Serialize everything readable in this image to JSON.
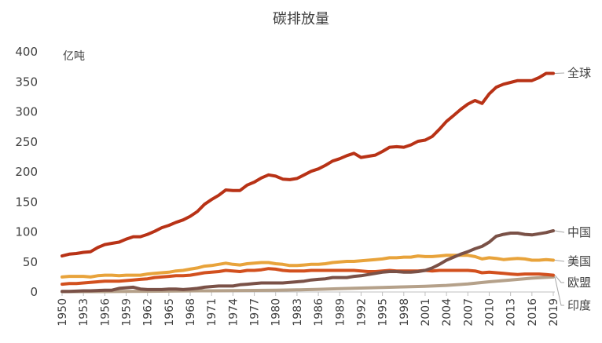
{
  "chart_data": {
    "type": "line",
    "title": "碳排放量",
    "unit_label": "亿吨",
    "ylim": [
      0,
      400
    ],
    "yticks": [
      0,
      50,
      100,
      150,
      200,
      250,
      300,
      350,
      400
    ],
    "xlim": [
      1950,
      2019
    ],
    "xticks": [
      1950,
      1953,
      1956,
      1959,
      1962,
      1965,
      1968,
      1971,
      1974,
      1977,
      1980,
      1983,
      1986,
      1989,
      1992,
      1995,
      1998,
      2001,
      2004,
      2007,
      2010,
      2013,
      2016,
      2019
    ],
    "grid": false,
    "series": [
      {
        "name": "全球",
        "color": "#b83216",
        "points": [
          [
            1950,
            60
          ],
          [
            1951,
            63
          ],
          [
            1952,
            64
          ],
          [
            1953,
            66
          ],
          [
            1954,
            67
          ],
          [
            1955,
            74
          ],
          [
            1956,
            79
          ],
          [
            1957,
            81
          ],
          [
            1958,
            83
          ],
          [
            1959,
            88
          ],
          [
            1960,
            92
          ],
          [
            1961,
            92
          ],
          [
            1962,
            96
          ],
          [
            1963,
            101
          ],
          [
            1964,
            107
          ],
          [
            1965,
            111
          ],
          [
            1966,
            116
          ],
          [
            1967,
            120
          ],
          [
            1968,
            126
          ],
          [
            1969,
            134
          ],
          [
            1970,
            146
          ],
          [
            1971,
            154
          ],
          [
            1972,
            161
          ],
          [
            1973,
            170
          ],
          [
            1974,
            169
          ],
          [
            1975,
            169
          ],
          [
            1976,
            178
          ],
          [
            1977,
            183
          ],
          [
            1978,
            190
          ],
          [
            1979,
            195
          ],
          [
            1980,
            193
          ],
          [
            1981,
            188
          ],
          [
            1982,
            187
          ],
          [
            1983,
            189
          ],
          [
            1984,
            195
          ],
          [
            1985,
            201
          ],
          [
            1986,
            205
          ],
          [
            1987,
            211
          ],
          [
            1988,
            218
          ],
          [
            1989,
            222
          ],
          [
            1990,
            227
          ],
          [
            1991,
            231
          ],
          [
            1992,
            224
          ],
          [
            1993,
            226
          ],
          [
            1994,
            228
          ],
          [
            1995,
            234
          ],
          [
            1996,
            241
          ],
          [
            1997,
            242
          ],
          [
            1998,
            241
          ],
          [
            1999,
            245
          ],
          [
            2000,
            251
          ],
          [
            2001,
            253
          ],
          [
            2002,
            259
          ],
          [
            2003,
            271
          ],
          [
            2004,
            284
          ],
          [
            2005,
            294
          ],
          [
            2006,
            304
          ],
          [
            2007,
            313
          ],
          [
            2008,
            319
          ],
          [
            2009,
            314
          ],
          [
            2010,
            330
          ],
          [
            2011,
            341
          ],
          [
            2012,
            346
          ],
          [
            2013,
            349
          ],
          [
            2014,
            352
          ],
          [
            2015,
            352
          ],
          [
            2016,
            352
          ],
          [
            2017,
            357
          ],
          [
            2018,
            364
          ],
          [
            2019,
            364
          ]
        ]
      },
      {
        "name": "中国",
        "color": "#7a5147",
        "points": [
          [
            1950,
            1
          ],
          [
            1951,
            1
          ],
          [
            1952,
            1.5
          ],
          [
            1953,
            2
          ],
          [
            1954,
            2
          ],
          [
            1955,
            2.5
          ],
          [
            1956,
            3
          ],
          [
            1957,
            3
          ],
          [
            1958,
            6
          ],
          [
            1959,
            7
          ],
          [
            1960,
            8
          ],
          [
            1961,
            5
          ],
          [
            1962,
            4
          ],
          [
            1963,
            4
          ],
          [
            1964,
            4
          ],
          [
            1965,
            5
          ],
          [
            1966,
            5
          ],
          [
            1967,
            4
          ],
          [
            1968,
            5
          ],
          [
            1969,
            6
          ],
          [
            1970,
            8
          ],
          [
            1971,
            9
          ],
          [
            1972,
            10
          ],
          [
            1973,
            10
          ],
          [
            1974,
            10
          ],
          [
            1975,
            12
          ],
          [
            1976,
            13
          ],
          [
            1977,
            14
          ],
          [
            1978,
            15
          ],
          [
            1979,
            15
          ],
          [
            1980,
            15
          ],
          [
            1981,
            15
          ],
          [
            1982,
            16
          ],
          [
            1983,
            17
          ],
          [
            1984,
            18
          ],
          [
            1985,
            20
          ],
          [
            1986,
            21
          ],
          [
            1987,
            22
          ],
          [
            1988,
            24
          ],
          [
            1989,
            24
          ],
          [
            1990,
            24
          ],
          [
            1991,
            26
          ],
          [
            1992,
            27
          ],
          [
            1993,
            29
          ],
          [
            1994,
            31
          ],
          [
            1995,
            33
          ],
          [
            1996,
            34
          ],
          [
            1997,
            34
          ],
          [
            1998,
            33
          ],
          [
            1999,
            33
          ],
          [
            2000,
            34
          ],
          [
            2001,
            36
          ],
          [
            2002,
            40
          ],
          [
            2003,
            46
          ],
          [
            2004,
            53
          ],
          [
            2005,
            58
          ],
          [
            2006,
            63
          ],
          [
            2007,
            67
          ],
          [
            2008,
            72
          ],
          [
            2009,
            76
          ],
          [
            2010,
            83
          ],
          [
            2011,
            93
          ],
          [
            2012,
            96
          ],
          [
            2013,
            98
          ],
          [
            2014,
            98
          ],
          [
            2015,
            96
          ],
          [
            2016,
            95
          ],
          [
            2017,
            97
          ],
          [
            2018,
            99
          ],
          [
            2019,
            102
          ]
        ]
      },
      {
        "name": "美国",
        "color": "#e8a33b",
        "points": [
          [
            1950,
            25
          ],
          [
            1951,
            26
          ],
          [
            1952,
            26
          ],
          [
            1953,
            26
          ],
          [
            1954,
            25
          ],
          [
            1955,
            27
          ],
          [
            1956,
            28
          ],
          [
            1957,
            28
          ],
          [
            1958,
            27
          ],
          [
            1959,
            28
          ],
          [
            1960,
            28
          ],
          [
            1961,
            28
          ],
          [
            1962,
            30
          ],
          [
            1963,
            31
          ],
          [
            1964,
            32
          ],
          [
            1965,
            33
          ],
          [
            1966,
            35
          ],
          [
            1967,
            36
          ],
          [
            1968,
            38
          ],
          [
            1969,
            40
          ],
          [
            1970,
            43
          ],
          [
            1971,
            44
          ],
          [
            1972,
            46
          ],
          [
            1973,
            48
          ],
          [
            1974,
            46
          ],
          [
            1975,
            45
          ],
          [
            1976,
            47
          ],
          [
            1977,
            48
          ],
          [
            1978,
            49
          ],
          [
            1979,
            49
          ],
          [
            1980,
            47
          ],
          [
            1981,
            46
          ],
          [
            1982,
            44
          ],
          [
            1983,
            44
          ],
          [
            1984,
            45
          ],
          [
            1985,
            46
          ],
          [
            1986,
            46
          ],
          [
            1987,
            47
          ],
          [
            1988,
            49
          ],
          [
            1989,
            50
          ],
          [
            1990,
            51
          ],
          [
            1991,
            51
          ],
          [
            1992,
            52
          ],
          [
            1993,
            53
          ],
          [
            1994,
            54
          ],
          [
            1995,
            55
          ],
          [
            1996,
            57
          ],
          [
            1997,
            57
          ],
          [
            1998,
            58
          ],
          [
            1999,
            58
          ],
          [
            2000,
            60
          ],
          [
            2001,
            59
          ],
          [
            2002,
            59
          ],
          [
            2003,
            60
          ],
          [
            2004,
            61
          ],
          [
            2005,
            61
          ],
          [
            2006,
            61
          ],
          [
            2007,
            61
          ],
          [
            2008,
            59
          ],
          [
            2009,
            55
          ],
          [
            2010,
            57
          ],
          [
            2011,
            56
          ],
          [
            2012,
            54
          ],
          [
            2013,
            55
          ],
          [
            2014,
            56
          ],
          [
            2015,
            55
          ],
          [
            2016,
            53
          ],
          [
            2017,
            53
          ],
          [
            2018,
            54
          ],
          [
            2019,
            53
          ]
        ]
      },
      {
        "name": "欧盟",
        "color": "#d2501e",
        "points": [
          [
            1950,
            13
          ],
          [
            1951,
            14
          ],
          [
            1952,
            14
          ],
          [
            1953,
            15
          ],
          [
            1954,
            16
          ],
          [
            1955,
            17
          ],
          [
            1956,
            18
          ],
          [
            1957,
            18
          ],
          [
            1958,
            18
          ],
          [
            1959,
            19
          ],
          [
            1960,
            20
          ],
          [
            1961,
            21
          ],
          [
            1962,
            22
          ],
          [
            1963,
            24
          ],
          [
            1964,
            25
          ],
          [
            1965,
            26
          ],
          [
            1966,
            27
          ],
          [
            1967,
            27
          ],
          [
            1968,
            28
          ],
          [
            1969,
            30
          ],
          [
            1970,
            32
          ],
          [
            1971,
            33
          ],
          [
            1972,
            34
          ],
          [
            1973,
            36
          ],
          [
            1974,
            35
          ],
          [
            1975,
            34
          ],
          [
            1976,
            36
          ],
          [
            1977,
            36
          ],
          [
            1978,
            37
          ],
          [
            1979,
            39
          ],
          [
            1980,
            38
          ],
          [
            1981,
            36
          ],
          [
            1982,
            35
          ],
          [
            1983,
            35
          ],
          [
            1984,
            35
          ],
          [
            1985,
            36
          ],
          [
            1986,
            36
          ],
          [
            1987,
            36
          ],
          [
            1988,
            36
          ],
          [
            1989,
            36
          ],
          [
            1990,
            36
          ],
          [
            1991,
            36
          ],
          [
            1992,
            35
          ],
          [
            1993,
            34
          ],
          [
            1994,
            34
          ],
          [
            1995,
            35
          ],
          [
            1996,
            36
          ],
          [
            1997,
            35
          ],
          [
            1998,
            35
          ],
          [
            1999,
            35
          ],
          [
            2000,
            35
          ],
          [
            2001,
            36
          ],
          [
            2002,
            35
          ],
          [
            2003,
            36
          ],
          [
            2004,
            36
          ],
          [
            2005,
            36
          ],
          [
            2006,
            36
          ],
          [
            2007,
            36
          ],
          [
            2008,
            35
          ],
          [
            2009,
            32
          ],
          [
            2010,
            33
          ],
          [
            2011,
            32
          ],
          [
            2012,
            31
          ],
          [
            2013,
            30
          ],
          [
            2014,
            29
          ],
          [
            2015,
            30
          ],
          [
            2016,
            30
          ],
          [
            2017,
            30
          ],
          [
            2018,
            29
          ],
          [
            2019,
            28
          ]
        ]
      },
      {
        "name": "印度",
        "color": "#b5a18a",
        "points": [
          [
            1950,
            0.5
          ],
          [
            1953,
            0.6
          ],
          [
            1956,
            0.7
          ],
          [
            1959,
            1
          ],
          [
            1962,
            1.2
          ],
          [
            1965,
            1.5
          ],
          [
            1968,
            1.8
          ],
          [
            1971,
            2
          ],
          [
            1974,
            2.3
          ],
          [
            1977,
            2.6
          ],
          [
            1980,
            3
          ],
          [
            1983,
            3.5
          ],
          [
            1986,
            4.5
          ],
          [
            1989,
            5.5
          ],
          [
            1992,
            6.5
          ],
          [
            1995,
            7.5
          ],
          [
            1998,
            8.5
          ],
          [
            2001,
            9.5
          ],
          [
            2004,
            11
          ],
          [
            2007,
            13.5
          ],
          [
            2010,
            17
          ],
          [
            2013,
            20
          ],
          [
            2016,
            23
          ],
          [
            2019,
            25
          ]
        ]
      }
    ]
  }
}
